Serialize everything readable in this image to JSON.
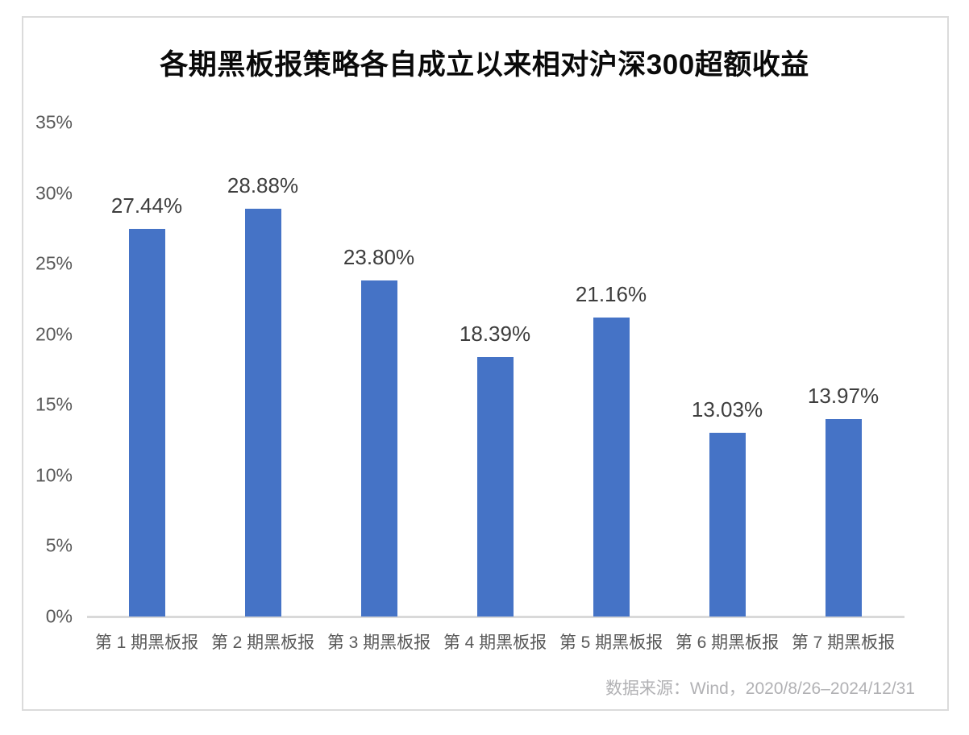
{
  "chart_data": {
    "type": "bar",
    "title": "各期黑板报策略各自成立以来相对沪深300超额收益",
    "categories": [
      "第 1 期黑板报",
      "第 2 期黑板报",
      "第 3 期黑板报",
      "第 4 期黑板报",
      "第 5 期黑板报",
      "第 6 期黑板报",
      "第 7 期黑板报"
    ],
    "values": [
      27.44,
      28.88,
      23.8,
      18.39,
      21.16,
      13.03,
      13.97
    ],
    "data_labels": [
      "27.44%",
      "28.88%",
      "23.80%",
      "18.39%",
      "21.16%",
      "13.03%",
      "13.97%"
    ],
    "xlabel": "",
    "ylabel": "",
    "ylim": [
      0,
      35
    ],
    "ytick_step": 5,
    "yticks": [
      "0%",
      "5%",
      "10%",
      "15%",
      "20%",
      "25%",
      "30%",
      "35%"
    ],
    "grid": false,
    "legend_position": "none"
  },
  "footer": {
    "source_note": "数据来源：Wind，2020/8/26–2024/12/31"
  },
  "colors": {
    "bar": "#4573C6",
    "title_text": "#0a0a0a",
    "axis_label_text": "#595959",
    "data_label_text": "#3d3d3d",
    "source_text": "#b1b1b4",
    "axis_line": "#d9d9d9",
    "frame_border": "#dbdbdb",
    "background": "#ffffff"
  }
}
